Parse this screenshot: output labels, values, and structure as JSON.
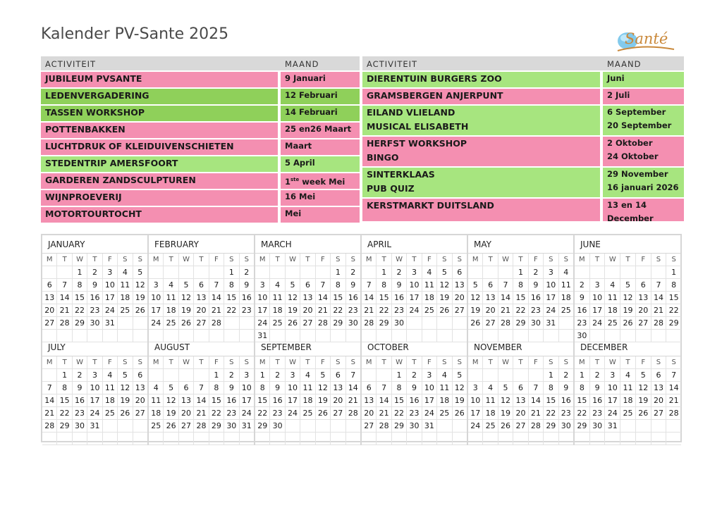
{
  "title": "Kalender PV-Sante 2025",
  "logo": {
    "text": "Santé"
  },
  "headers": {
    "activity": "ACTIVITEIT",
    "month": "MAAND"
  },
  "left_activities": [
    {
      "name": [
        "JUBILEUM PVSANTE"
      ],
      "month": [
        "9 Januari"
      ],
      "color": "pink",
      "h": 22
    },
    {
      "name": [
        "LEDENVERGADERING"
      ],
      "month": [
        "12 Februari"
      ],
      "color": "dkgreen",
      "h": 22
    },
    {
      "name": [
        "TASSEN WORKSHOP"
      ],
      "month": [
        "14 Februari"
      ],
      "color": "dkgreen",
      "h": 22
    },
    {
      "name": [
        "POTTENBAKKEN"
      ],
      "month": [
        "25 en26 Maart"
      ],
      "color": "pink",
      "h": 22
    },
    {
      "name": [
        "LUCHTDRUK OF KLEIDUIVENSCHIETEN"
      ],
      "month": [
        "Maart"
      ],
      "color": "pink",
      "h": 22
    },
    {
      "name": [
        "STEDENTRIP AMERSFOORT"
      ],
      "month": [
        "5 April"
      ],
      "color": "green",
      "h": 22
    },
    {
      "name": [
        "GARDEREN ZANDSCULPTUREN"
      ],
      "month": [
        "1ste week Mei"
      ],
      "color": "pink",
      "h": 22
    },
    {
      "name": [
        "WIJNPROEVERIJ"
      ],
      "month": [
        "16 Mei"
      ],
      "color": "pink",
      "h": 22
    },
    {
      "name": [
        "MOTORTOURTOCHT"
      ],
      "month": [
        "Mei"
      ],
      "color": "pink",
      "h": 22
    }
  ],
  "right_activities": [
    {
      "name": [
        "DIERENTUIN BURGERS ZOO"
      ],
      "month": [
        "Juni"
      ],
      "color": "green",
      "h": 22
    },
    {
      "name": [
        "GRAMSBERGEN ANJERPUNT"
      ],
      "month": [
        "2 Juli"
      ],
      "color": "pink",
      "h": 22
    },
    {
      "name": [
        "EILAND VLIELAND",
        "MUSICAL ELISABETH"
      ],
      "month": [
        "6 September",
        "20 September"
      ],
      "color": "green",
      "h": 42
    },
    {
      "name": [
        "HERFST WORKSHOP",
        "BINGO"
      ],
      "month": [
        "2 Oktober",
        "24 Oktober"
      ],
      "color": "pink",
      "h": 42
    },
    {
      "name": [
        "SINTERKLAAS",
        "PUB QUIZ"
      ],
      "month": [
        "29 November",
        "16 januari 2026"
      ],
      "color": "green",
      "h": 42
    },
    {
      "name": [
        "KERSTMARKT DUITSLAND"
      ],
      "month": [
        "13 en 14",
        "December"
      ],
      "color": "pink",
      "h": 32
    }
  ],
  "weekdays": [
    "M",
    "T",
    "W",
    "T",
    "F",
    "S",
    "S"
  ],
  "months": [
    {
      "name": "JANUARY",
      "offset": 2,
      "days": 31
    },
    {
      "name": "FEBRUARY",
      "offset": 5,
      "days": 28
    },
    {
      "name": "MARCH",
      "offset": 5,
      "days": 31
    },
    {
      "name": "APRIL",
      "offset": 1,
      "days": 30
    },
    {
      "name": "MAY",
      "offset": 3,
      "days": 31
    },
    {
      "name": "JUNE",
      "offset": 6,
      "days": 30
    },
    {
      "name": "JULY",
      "offset": 1,
      "days": 31
    },
    {
      "name": "AUGUST",
      "offset": 4,
      "days": 31
    },
    {
      "name": "SEPTEMBER",
      "offset": 0,
      "days": 30
    },
    {
      "name": "OCTOBER",
      "offset": 2,
      "days": 31
    },
    {
      "name": "NOVEMBER",
      "offset": 5,
      "days": 30
    },
    {
      "name": "DECEMBER",
      "offset": 0,
      "days": 31
    }
  ],
  "colors": {
    "pink": "#f48fb1",
    "green": "#a7e57f",
    "dkgreen": "#8fd05a",
    "header": "#d9d9d9"
  }
}
